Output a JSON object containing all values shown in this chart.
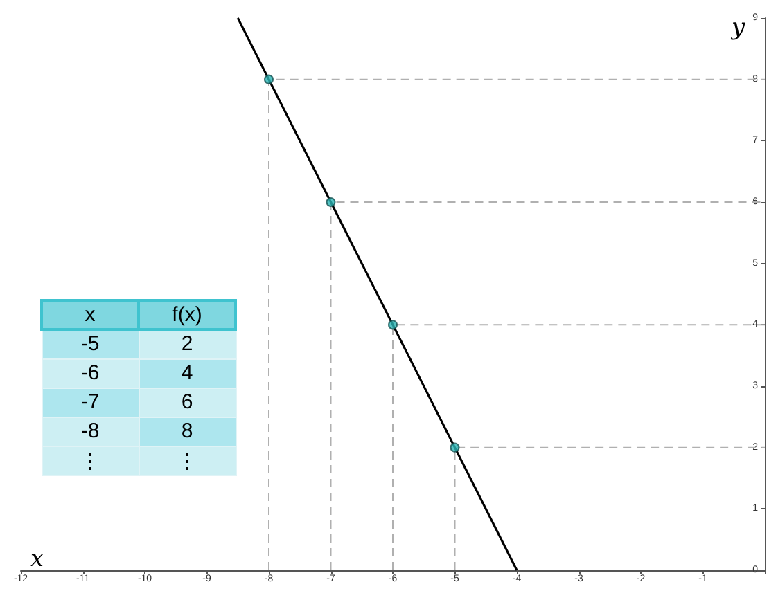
{
  "chart_data": {
    "type": "line",
    "xlabel": "x",
    "ylabel": "y",
    "xlim": [
      -12,
      0
    ],
    "xticks": [
      -12,
      -11,
      -10,
      -9,
      -8,
      -7,
      -6,
      -5,
      -4,
      -3,
      -2,
      -1,
      {
        "value": 0,
        "label": null
      }
    ],
    "ylim": [
      0,
      9
    ],
    "yticks": [
      0,
      1,
      2,
      3,
      4,
      5,
      6,
      7,
      8,
      9
    ],
    "grid": false,
    "annotations": [
      "x",
      "f(x)",
      "-5",
      "2",
      "-6",
      "4",
      "-7",
      "6",
      "-8",
      "8",
      "⋮",
      "⋮"
    ],
    "series": [
      {
        "color": "#000000",
        "x": [
          -8.5,
          -4
        ],
        "values": [
          9,
          0
        ],
        "marker": "none",
        "line_style": "solid"
      },
      {
        "color": "#b0b0b0",
        "x": [
          -8,
          -8,
          0
        ],
        "values": [
          0,
          8,
          8
        ],
        "marker": "none",
        "line_style": "dashed"
      },
      {
        "color": "#b0b0b0",
        "x": [
          -7,
          -7,
          0
        ],
        "values": [
          0,
          6,
          6
        ],
        "marker": "none",
        "line_style": "dashed"
      },
      {
        "color": "#b0b0b0",
        "x": [
          -6,
          -6,
          0
        ],
        "values": [
          0,
          4,
          4
        ],
        "marker": "none",
        "line_style": "dashed"
      },
      {
        "color": "#b0b0b0",
        "x": [
          -5,
          -5,
          0
        ],
        "values": [
          0,
          2,
          2
        ],
        "marker": "none",
        "line_style": "dashed"
      },
      {
        "type": "scatter",
        "color": "#2ab5b5",
        "x": [
          -5,
          -6,
          -7,
          -8
        ],
        "values": [
          2,
          4,
          6,
          8
        ],
        "marker": "circle"
      }
    ]
  }
}
